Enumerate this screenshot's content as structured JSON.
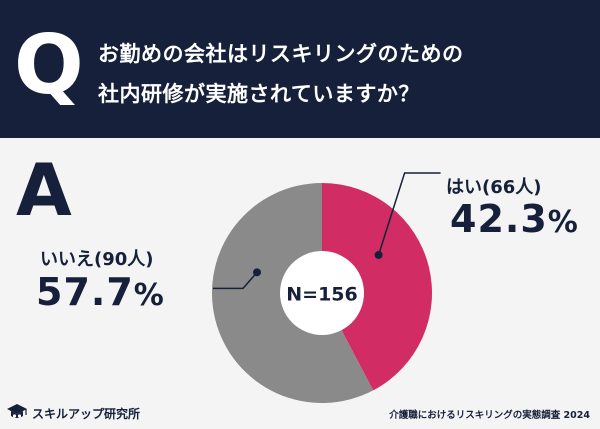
{
  "header": {
    "q_letter": "Q",
    "question_line1": "お勤めの会社はリスキリングのための",
    "question_line2": "社内研修が実施されていますか？",
    "background": "#16203a"
  },
  "answer": {
    "a_letter": "A"
  },
  "chart_data": {
    "type": "pie",
    "center_label": "N=156",
    "series": [
      {
        "name": "はい(66人)",
        "value": 42.3,
        "display": "42.3",
        "unit": "%",
        "color": "#d12c64"
      },
      {
        "name": "いいえ(90人)",
        "value": 57.7,
        "display": "57.7",
        "unit": "%",
        "color": "#8a8a8a"
      }
    ]
  },
  "footer": {
    "logo_text": "スキルアップ研究所",
    "logo_icon": "graduation-cap-icon",
    "source": "介護職におけるリスキリングの実態調査 2024"
  }
}
